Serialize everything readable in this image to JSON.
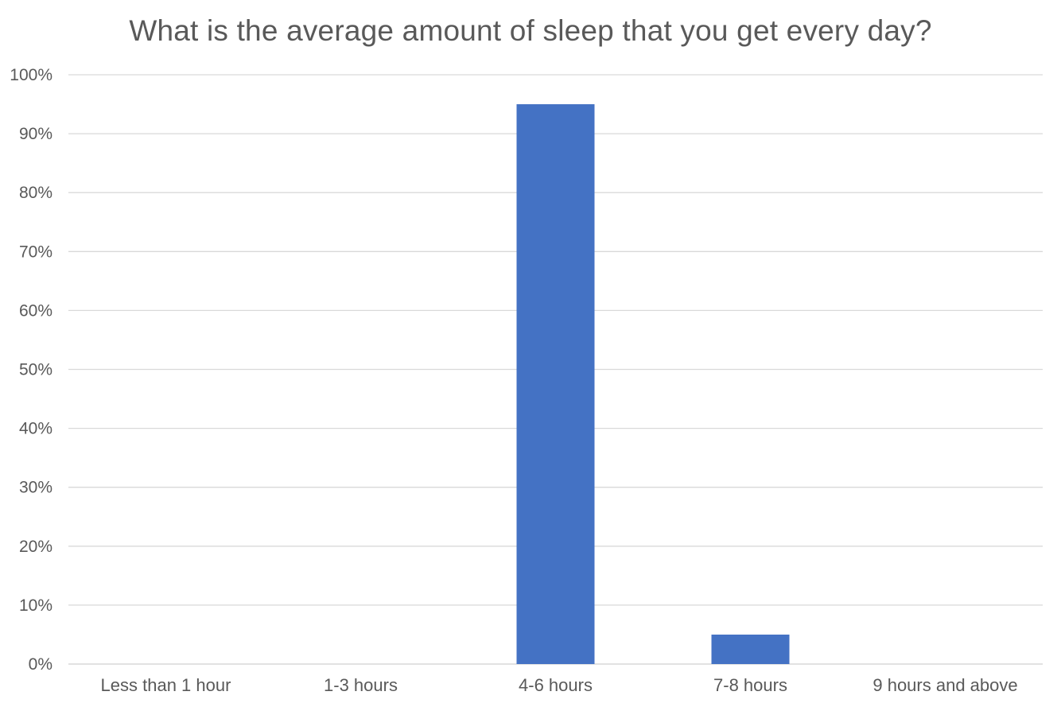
{
  "chart_data": {
    "type": "bar",
    "title": "What is the average amount of sleep that you get every day?",
    "xlabel": "",
    "ylabel": "",
    "categories": [
      "Less than 1 hour",
      "1-3 hours",
      "4-6 hours",
      "7-8 hours",
      "9 hours and above"
    ],
    "values": [
      0,
      0,
      95,
      5,
      0
    ],
    "value_format": "percent",
    "ylim": [
      0,
      100
    ],
    "y_ticks": [
      "0%",
      "10%",
      "20%",
      "30%",
      "40%",
      "50%",
      "60%",
      "70%",
      "80%",
      "90%",
      "100%"
    ],
    "grid": true,
    "legend": "none",
    "colors": {
      "bar": "#4472C4",
      "grid": "#D9D9D9",
      "text": "#595959"
    }
  }
}
